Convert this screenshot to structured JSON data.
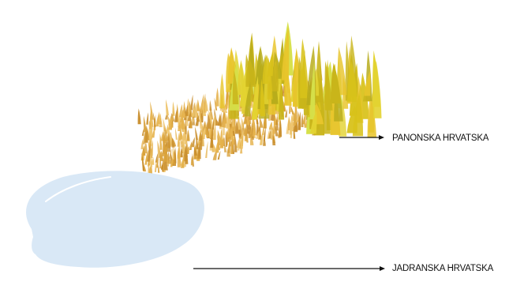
{
  "labels": {
    "pannonian": "PANONSKA HRVATSKA",
    "adriatic": "JADRANSKA HRVATSKA"
  },
  "colors": {
    "grass_tall": [
      "#d8c21a",
      "#c9b51a",
      "#e3d331",
      "#d6e04a",
      "#b7ac1c",
      "#e8c52c"
    ],
    "grass_short": [
      "#e5b24c",
      "#d9a23c",
      "#eec56d",
      "#c98f2e"
    ],
    "water_fill": "#d9e8f6",
    "water_highlight": "#ffffff",
    "arrow": "#111111"
  },
  "icons": {
    "tall_grass": "tall-grass-icon",
    "short_grass": "wheat-field-icon",
    "water": "water-puddle-icon"
  }
}
